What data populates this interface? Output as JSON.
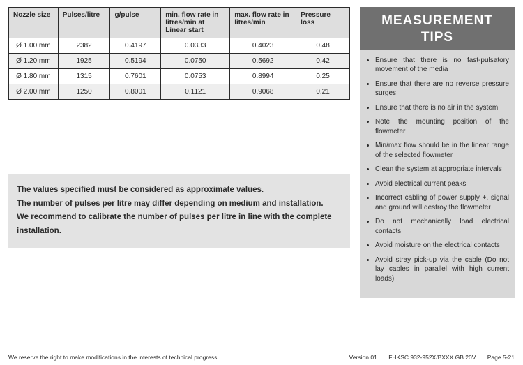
{
  "table": {
    "columns": [
      "Nozzle size",
      "Pulses/litre",
      "g/pulse",
      "min. flow rate in litres/min at Linear start",
      "max. flow rate in litres/min",
      "Pressure loss"
    ],
    "rows": [
      [
        "Ø 1.00 mm",
        "2382",
        "0.4197",
        "0.0333",
        "0.4023",
        "0.48"
      ],
      [
        "Ø 1.20 mm",
        "1925",
        "0.5194",
        "0.0750",
        "0.5692",
        "0.42"
      ],
      [
        "Ø 1.80 mm",
        "1315",
        "0.7601",
        "0.0753",
        "0.8994",
        "0.25"
      ],
      [
        "Ø 2.00 mm",
        "1250",
        "0.8001",
        "0.1121",
        "0.9068",
        "0.21"
      ]
    ]
  },
  "note": {
    "line1": "The values specified must be considered as approximate values.",
    "line2": "The number of pulses per litre may differ depending on medium and installation.",
    "line3": "We recommend to calibrate the number of pulses per litre in line with the complete installation."
  },
  "sidebar": {
    "title_line1": "MEASUREMENT",
    "title_line2": "TIPS",
    "tips": [
      "Ensure that there is no fast-pulsatory movement of the media",
      "Ensure that there are no reverse pressure surges",
      "Ensure that there is no air in the system",
      "Note the mounting position of the flowmeter",
      "Min/max flow should be in the linear range of the selected flowmeter",
      "Clean the system at appropriate intervals",
      "Avoid electrical current peaks",
      "Incorrect cabling of power supply +, signal and ground will destroy the flowmeter",
      "Do not mechanically load electrical contacts",
      "Avoid moisture on the electrical contacts",
      "Avoid stray pick-up via the cable (Do not lay cables in parallel with high current loads)"
    ]
  },
  "footer": {
    "left": "We reserve the right to make modifications in the interests of technical progress .",
    "version": "Version 01",
    "doc": "FHKSC  932-952X/BXXX GB 20V",
    "page": "Page 5-21"
  }
}
